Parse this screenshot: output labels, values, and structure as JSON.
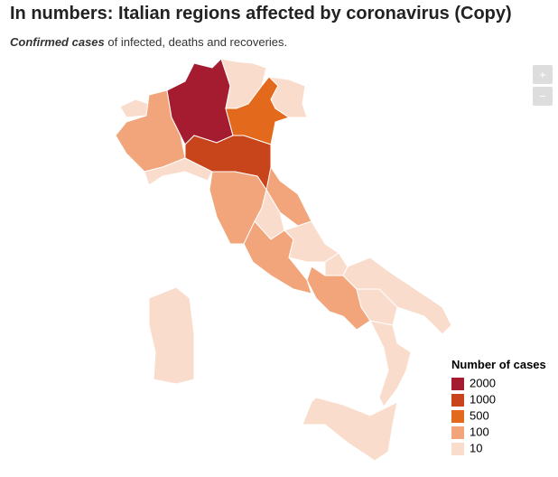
{
  "header": {
    "title": "In numbers: Italian regions affected by coronavirus (Copy)",
    "subtitle_emphasis": "Confirmed cases",
    "subtitle_rest": "of infected, deaths and recoveries."
  },
  "zoom": {
    "in": "+",
    "out": "−"
  },
  "legend": {
    "title": "Number of cases",
    "items": [
      {
        "label": "2000",
        "color": "#a51c30"
      },
      {
        "label": "1000",
        "color": "#c8441a"
      },
      {
        "label": "500",
        "color": "#e36a1c"
      },
      {
        "label": "100",
        "color": "#f2a57b"
      },
      {
        "label": "10",
        "color": "#f9dccb"
      }
    ]
  }
}
